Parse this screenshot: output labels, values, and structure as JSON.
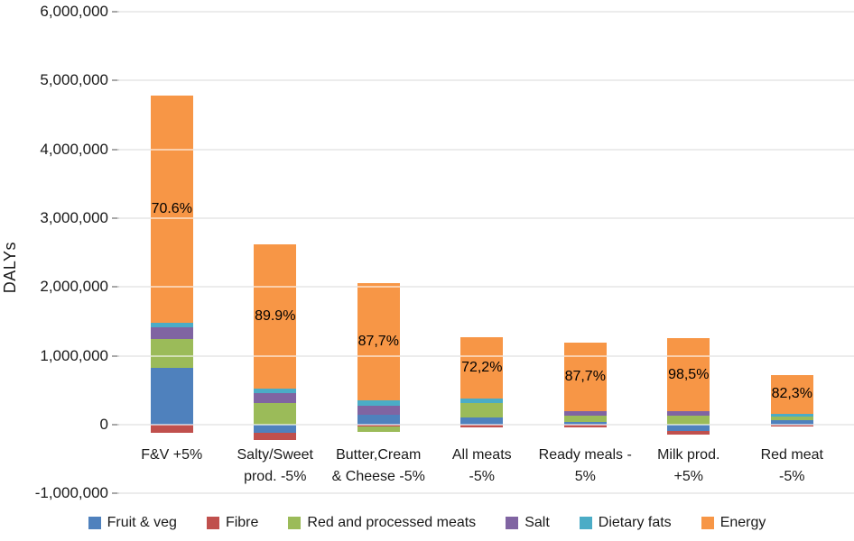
{
  "chart_data": {
    "type": "bar",
    "stacked": true,
    "title": "",
    "xlabel": "",
    "ylabel": "DALYs",
    "ylim": [
      -1000000,
      6000000
    ],
    "grid": true,
    "legend_position": "bottom",
    "y_ticks": [
      {
        "value": 6000000,
        "label": "6,000,000"
      },
      {
        "value": 5000000,
        "label": "5,000,000"
      },
      {
        "value": 4000000,
        "label": "4,000,000"
      },
      {
        "value": 3000000,
        "label": "3,000,000"
      },
      {
        "value": 2000000,
        "label": "2,000,000"
      },
      {
        "value": 1000000,
        "label": "1,000,000"
      },
      {
        "value": 0,
        "label": "0"
      },
      {
        "value": -1000000,
        "label": "-1,000,000"
      }
    ],
    "categories": [
      {
        "lines": [
          "F&V +5%"
        ]
      },
      {
        "lines": [
          "Salty/Sweet",
          "prod. -5%"
        ]
      },
      {
        "lines": [
          "Butter,Cream",
          "& Cheese -5%"
        ]
      },
      {
        "lines": [
          "All meats",
          "-5%"
        ]
      },
      {
        "lines": [
          "Ready meals -",
          "5%"
        ]
      },
      {
        "lines": [
          "Milk prod.",
          "+5%"
        ]
      },
      {
        "lines": [
          "Red meat",
          "-5%"
        ]
      }
    ],
    "series": [
      {
        "name": "Fruit & veg",
        "color": "#4F81BD",
        "values": [
          830000,
          -120000,
          140000,
          100000,
          40000,
          -90000,
          65000
        ]
      },
      {
        "name": "Fibre",
        "color": "#C0504D",
        "values": [
          -120000,
          -100000,
          -20000,
          -40000,
          -40000,
          -60000,
          -20000
        ]
      },
      {
        "name": "Red and processed meats",
        "color": "#9BBB59",
        "values": [
          420000,
          320000,
          -90000,
          220000,
          90000,
          130000,
          52000
        ]
      },
      {
        "name": "Salt",
        "color": "#8064A2",
        "values": [
          170000,
          140000,
          130000,
          0,
          65000,
          65000,
          0
        ]
      },
      {
        "name": "Dietary fats",
        "color": "#4BACC6",
        "values": [
          60000,
          60000,
          90000,
          65000,
          0,
          0,
          40000
        ]
      },
      {
        "name": "Energy",
        "color": "#F79646",
        "values": [
          3300000,
          2100000,
          1700000,
          880000,
          1000000,
          1060000,
          570000
        ]
      }
    ],
    "bar_labels": [
      "70.6%",
      "89.9%",
      "87,7%",
      "72,2%",
      "87,7%",
      "98,5%",
      "82,3%"
    ]
  }
}
